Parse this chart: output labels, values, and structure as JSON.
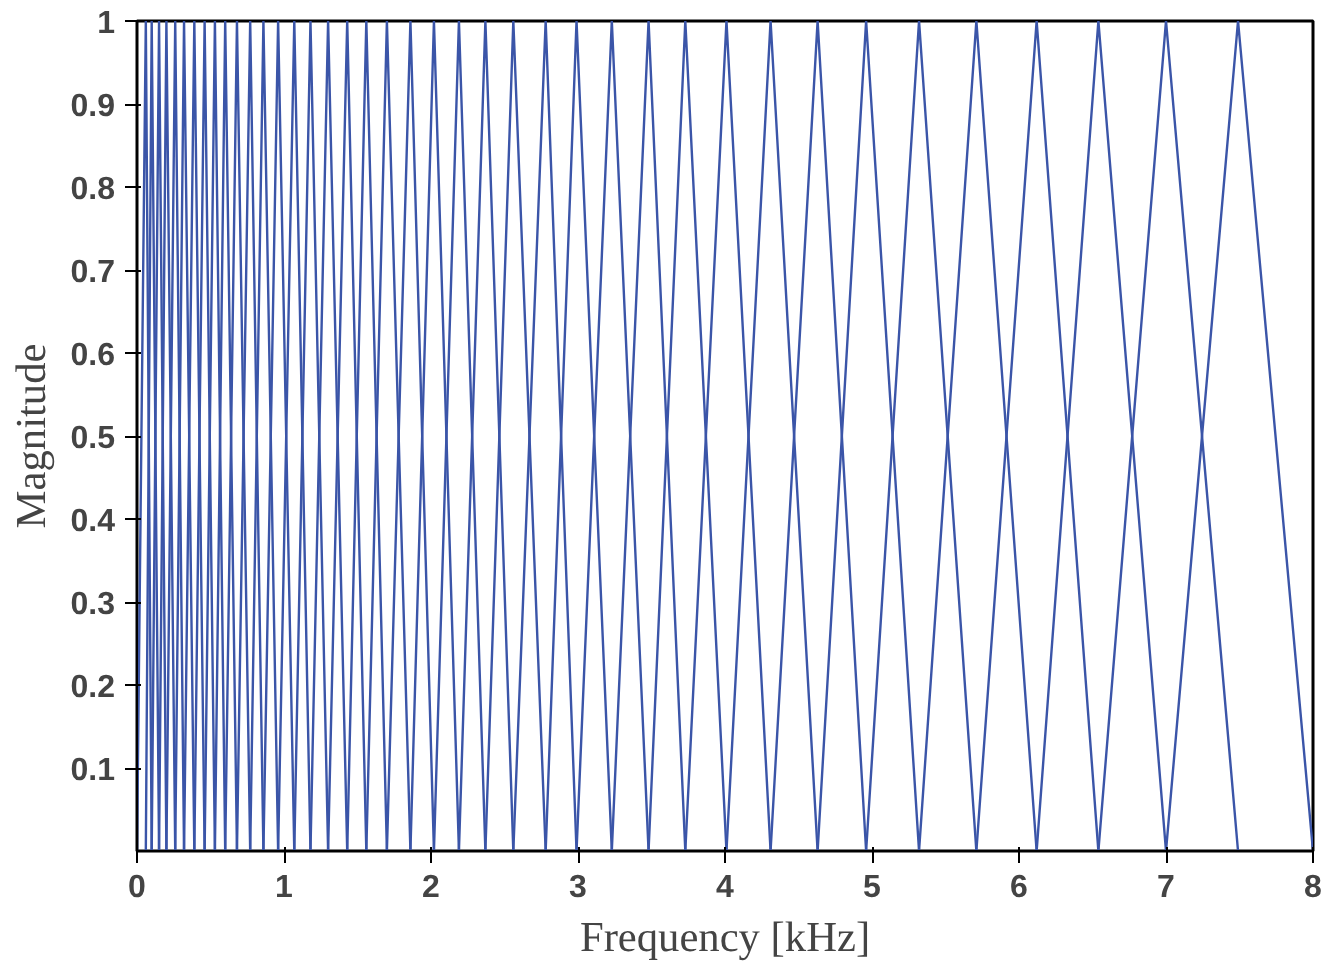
{
  "chart_data": {
    "type": "line",
    "xlabel": "Frequency [kHz]",
    "ylabel": "Magnitude",
    "xlim": [
      0,
      8
    ],
    "xticks": [
      0,
      1,
      2,
      3,
      4,
      5,
      6,
      7,
      8
    ],
    "ylim": [
      0,
      1
    ],
    "yticks": [
      0.1,
      0.2,
      0.3,
      0.4,
      0.5,
      0.6,
      0.7,
      0.8,
      0.9,
      1
    ],
    "grid": false,
    "line_style": "solid",
    "series": [
      {
        "color": "#3b55a8",
        "x": [
          0,
          0.06,
          0.1
        ],
        "values": [
          0,
          1,
          0
        ]
      },
      {
        "color": "#3b55a8",
        "x": [
          0.06,
          0.1,
          0.15
        ],
        "values": [
          0,
          1,
          0
        ]
      },
      {
        "color": "#3b55a8",
        "x": [
          0.1,
          0.15,
          0.2
        ],
        "values": [
          0,
          1,
          0
        ]
      },
      {
        "color": "#3b55a8",
        "x": [
          0.15,
          0.2,
          0.26
        ],
        "values": [
          0,
          1,
          0
        ]
      },
      {
        "color": "#3b55a8",
        "x": [
          0.2,
          0.26,
          0.32
        ],
        "values": [
          0,
          1,
          0
        ]
      },
      {
        "color": "#3b55a8",
        "x": [
          0.26,
          0.32,
          0.39
        ],
        "values": [
          0,
          1,
          0
        ]
      },
      {
        "color": "#3b55a8",
        "x": [
          0.32,
          0.39,
          0.46
        ],
        "values": [
          0,
          1,
          0
        ]
      },
      {
        "color": "#3b55a8",
        "x": [
          0.39,
          0.46,
          0.53
        ],
        "values": [
          0,
          1,
          0
        ]
      },
      {
        "color": "#3b55a8",
        "x": [
          0.46,
          0.53,
          0.6
        ],
        "values": [
          0,
          1,
          0
        ]
      },
      {
        "color": "#3b55a8",
        "x": [
          0.53,
          0.6,
          0.68
        ],
        "values": [
          0,
          1,
          0
        ]
      },
      {
        "color": "#3b55a8",
        "x": [
          0.6,
          0.68,
          0.77
        ],
        "values": [
          0,
          1,
          0
        ]
      },
      {
        "color": "#3b55a8",
        "x": [
          0.68,
          0.77,
          0.86
        ],
        "values": [
          0,
          1,
          0
        ]
      },
      {
        "color": "#3b55a8",
        "x": [
          0.77,
          0.86,
          0.96
        ],
        "values": [
          0,
          1,
          0
        ]
      },
      {
        "color": "#3b55a8",
        "x": [
          0.86,
          0.96,
          1.07
        ],
        "values": [
          0,
          1,
          0
        ]
      },
      {
        "color": "#3b55a8",
        "x": [
          0.96,
          1.07,
          1.18
        ],
        "values": [
          0,
          1,
          0
        ]
      },
      {
        "color": "#3b55a8",
        "x": [
          1.07,
          1.18,
          1.3
        ],
        "values": [
          0,
          1,
          0
        ]
      },
      {
        "color": "#3b55a8",
        "x": [
          1.18,
          1.3,
          1.43
        ],
        "values": [
          0,
          1,
          0
        ]
      },
      {
        "color": "#3b55a8",
        "x": [
          1.3,
          1.43,
          1.56
        ],
        "values": [
          0,
          1,
          0
        ]
      },
      {
        "color": "#3b55a8",
        "x": [
          1.43,
          1.56,
          1.7
        ],
        "values": [
          0,
          1,
          0
        ]
      },
      {
        "color": "#3b55a8",
        "x": [
          1.56,
          1.7,
          1.86
        ],
        "values": [
          0,
          1,
          0
        ]
      },
      {
        "color": "#3b55a8",
        "x": [
          1.7,
          1.86,
          2.02
        ],
        "values": [
          0,
          1,
          0
        ]
      },
      {
        "color": "#3b55a8",
        "x": [
          1.86,
          2.02,
          2.19
        ],
        "values": [
          0,
          1,
          0
        ]
      },
      {
        "color": "#3b55a8",
        "x": [
          2.02,
          2.19,
          2.37
        ],
        "values": [
          0,
          1,
          0
        ]
      },
      {
        "color": "#3b55a8",
        "x": [
          2.19,
          2.37,
          2.56
        ],
        "values": [
          0,
          1,
          0
        ]
      },
      {
        "color": "#3b55a8",
        "x": [
          2.37,
          2.56,
          2.78
        ],
        "values": [
          0,
          1,
          0
        ]
      },
      {
        "color": "#3b55a8",
        "x": [
          2.56,
          2.78,
          2.99
        ],
        "values": [
          0,
          1,
          0
        ]
      },
      {
        "color": "#3b55a8",
        "x": [
          2.78,
          2.99,
          3.23
        ],
        "values": [
          0,
          1,
          0
        ]
      },
      {
        "color": "#3b55a8",
        "x": [
          2.99,
          3.23,
          3.48
        ],
        "values": [
          0,
          1,
          0
        ]
      },
      {
        "color": "#3b55a8",
        "x": [
          3.23,
          3.48,
          3.73
        ],
        "values": [
          0,
          1,
          0
        ]
      },
      {
        "color": "#3b55a8",
        "x": [
          3.48,
          3.73,
          4.01
        ],
        "values": [
          0,
          1,
          0
        ]
      },
      {
        "color": "#3b55a8",
        "x": [
          3.73,
          4.01,
          4.31
        ],
        "values": [
          0,
          1,
          0
        ]
      },
      {
        "color": "#3b55a8",
        "x": [
          4.01,
          4.31,
          4.63
        ],
        "values": [
          0,
          1,
          0
        ]
      },
      {
        "color": "#3b55a8",
        "x": [
          4.31,
          4.63,
          4.96
        ],
        "values": [
          0,
          1,
          0
        ]
      },
      {
        "color": "#3b55a8",
        "x": [
          4.63,
          4.96,
          5.32
        ],
        "values": [
          0,
          1,
          0
        ]
      },
      {
        "color": "#3b55a8",
        "x": [
          4.96,
          5.32,
          5.71
        ],
        "values": [
          0,
          1,
          0
        ]
      },
      {
        "color": "#3b55a8",
        "x": [
          5.32,
          5.71,
          6.12
        ],
        "values": [
          0,
          1,
          0
        ]
      },
      {
        "color": "#3b55a8",
        "x": [
          5.71,
          6.12,
          6.54
        ],
        "values": [
          0,
          1,
          0
        ]
      },
      {
        "color": "#3b55a8",
        "x": [
          6.12,
          6.54,
          7.0
        ],
        "values": [
          0,
          1,
          0
        ]
      },
      {
        "color": "#3b55a8",
        "x": [
          6.54,
          7.0,
          7.49
        ],
        "values": [
          0,
          1,
          0
        ]
      },
      {
        "color": "#3b55a8",
        "x": [
          7.0,
          7.49,
          8
        ],
        "values": [
          0,
          1,
          0
        ]
      }
    ]
  }
}
